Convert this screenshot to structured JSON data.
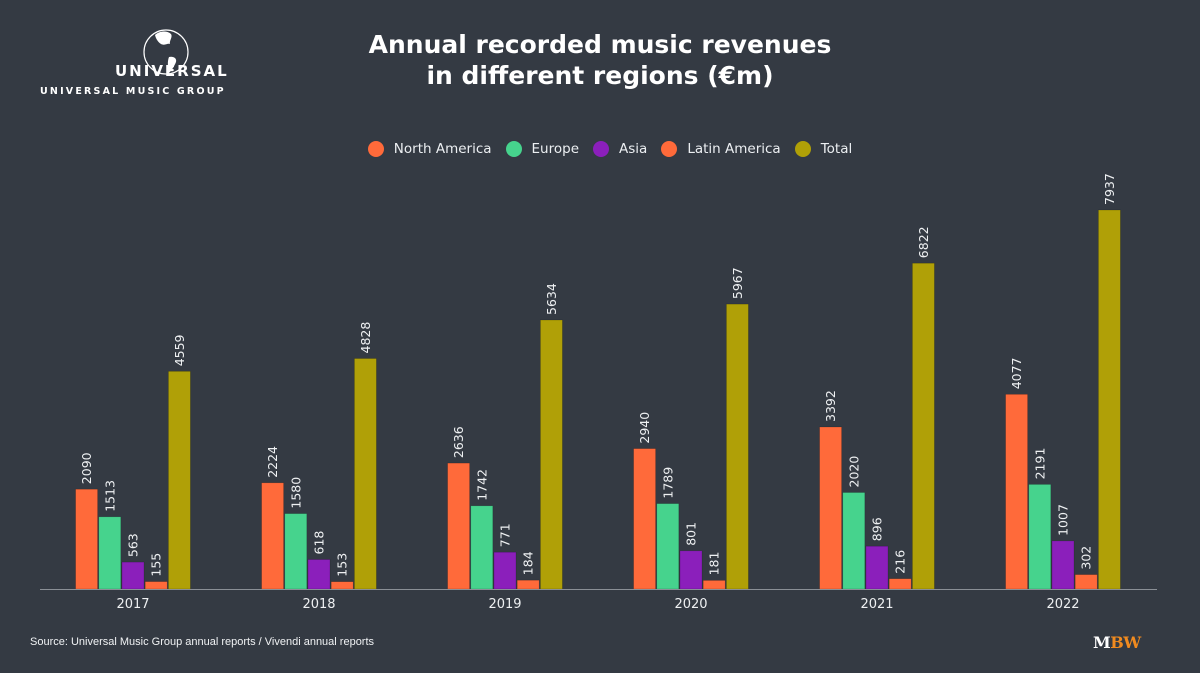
{
  "logo": {
    "wordmark": "UNIVERSAL",
    "subtitle": "UNIVERSAL MUSIC GROUP",
    "icon": "globe-icon"
  },
  "footer": {
    "source": "Source: Universal Music Group annual reports / Vivendi annual reports",
    "brand_m": "M",
    "brand_bw": "BW"
  },
  "chart_data": {
    "type": "bar",
    "title": "Annual recorded music revenues in different regions (€m)",
    "title_lines": [
      "Annual recorded music revenues",
      "in different regions (€m)"
    ],
    "xlabel": "",
    "ylabel": "",
    "ylim": [
      0,
      7937
    ],
    "grid": false,
    "legend_position": "top-center",
    "categories": [
      "2017",
      "2018",
      "2019",
      "2020",
      "2021",
      "2022"
    ],
    "series": [
      {
        "name": "North America",
        "color": "#ff6a3a",
        "values": [
          2090,
          2224,
          2636,
          2940,
          3392,
          4077
        ]
      },
      {
        "name": "Europe",
        "color": "#46d38d",
        "values": [
          1513,
          1580,
          1742,
          1789,
          2020,
          2191
        ]
      },
      {
        "name": "Asia",
        "color": "#8b1fbb",
        "values": [
          563,
          618,
          771,
          801,
          896,
          1007
        ]
      },
      {
        "name": "Latin America",
        "color": "#ff6a3a",
        "values": [
          155,
          153,
          184,
          181,
          216,
          302
        ]
      },
      {
        "name": "Total",
        "color": "#b0a007",
        "values": [
          4559,
          4828,
          5634,
          5967,
          6822,
          7937
        ]
      }
    ],
    "data_labels": true
  }
}
